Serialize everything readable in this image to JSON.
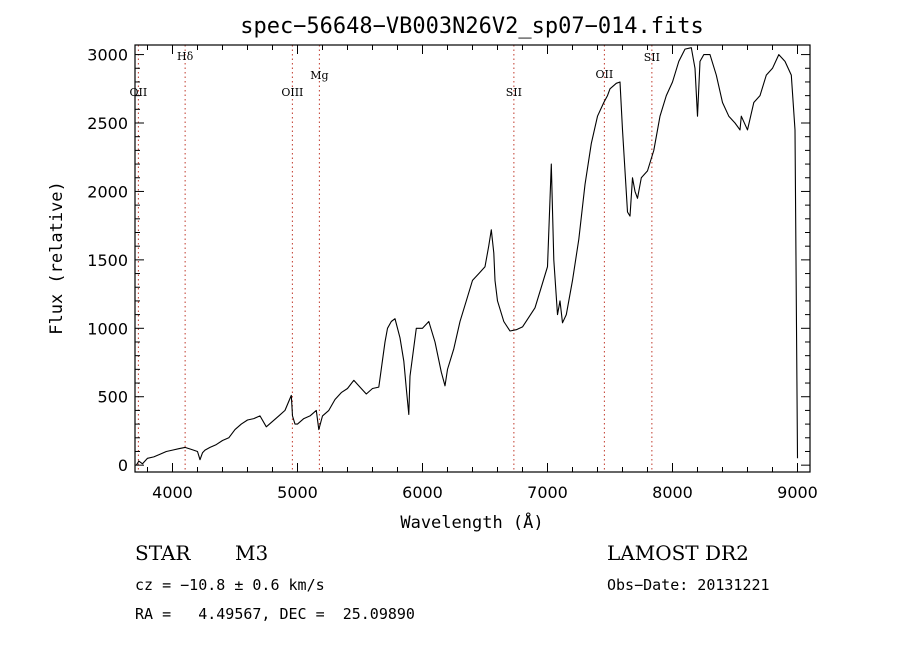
{
  "chart_data": {
    "type": "line",
    "title": "spec−56648−VB003N26V2_sp07−014.fits",
    "xlabel": "Wavelength (Å)",
    "ylabel": "Flux (relative)",
    "xlim": [
      3700,
      9100
    ],
    "ylim": [
      -50,
      3070
    ],
    "x_ticks": [
      4000,
      5000,
      6000,
      7000,
      8000,
      9000
    ],
    "y_ticks": [
      0,
      500,
      1000,
      1500,
      2000,
      2500,
      3000
    ],
    "grid": false,
    "line_markers": [
      {
        "label": "OII",
        "x": 3727
      },
      {
        "label": "Hδ",
        "x": 4101
      },
      {
        "label": "OIII",
        "x": 4959
      },
      {
        "label": "Mg",
        "x": 5175
      },
      {
        "label": "SII",
        "x": 6731
      },
      {
        "label": "OII",
        "x": 7455
      },
      {
        "label": "SII",
        "x": 7835
      }
    ],
    "series": [
      {
        "x": [
          3710,
          3730,
          3760,
          3800,
          3850,
          3900,
          3950,
          4000,
          4050,
          4100,
          4150,
          4200,
          4220,
          4240,
          4260,
          4300,
          4350,
          4400,
          4450,
          4500,
          4550,
          4600,
          4650,
          4700,
          4750,
          4800,
          4850,
          4900,
          4950,
          4960,
          4980,
          5000,
          5050,
          5100,
          5150,
          5170,
          5200,
          5250,
          5300,
          5350,
          5400,
          5450,
          5500,
          5550,
          5600,
          5650,
          5700,
          5720,
          5750,
          5780,
          5820,
          5850,
          5870,
          5890,
          5900,
          5950,
          6000,
          6050,
          6100,
          6150,
          6180,
          6200,
          6250,
          6300,
          6350,
          6400,
          6450,
          6500,
          6530,
          6550,
          6570,
          6580,
          6600,
          6650,
          6700,
          6750,
          6800,
          6850,
          6900,
          6950,
          7000,
          7030,
          7050,
          7080,
          7100,
          7120,
          7150,
          7200,
          7250,
          7300,
          7350,
          7400,
          7450,
          7480,
          7500,
          7550,
          7580,
          7600,
          7620,
          7640,
          7660,
          7680,
          7700,
          7720,
          7750,
          7800,
          7850,
          7900,
          7950,
          8000,
          8050,
          8100,
          8150,
          8180,
          8200,
          8220,
          8250,
          8300,
          8350,
          8400,
          8450,
          8500,
          8540,
          8550,
          8600,
          8650,
          8700,
          8750,
          8800,
          8850,
          8900,
          8950,
          8980,
          9000
        ],
        "values": [
          0,
          30,
          10,
          50,
          60,
          80,
          100,
          110,
          120,
          130,
          115,
          100,
          40,
          90,
          110,
          130,
          150,
          180,
          200,
          260,
          300,
          330,
          340,
          360,
          280,
          320,
          360,
          400,
          510,
          360,
          300,
          300,
          340,
          360,
          400,
          260,
          360,
          400,
          480,
          530,
          560,
          620,
          570,
          520,
          560,
          570,
          900,
          1000,
          1050,
          1070,
          930,
          760,
          560,
          370,
          650,
          1000,
          1000,
          1050,
          900,
          680,
          580,
          700,
          850,
          1050,
          1200,
          1350,
          1400,
          1450,
          1600,
          1720,
          1550,
          1350,
          1200,
          1050,
          980,
          990,
          1010,
          1080,
          1150,
          1300,
          1450,
          2200,
          1500,
          1100,
          1200,
          1040,
          1100,
          1350,
          1650,
          2050,
          2350,
          2550,
          2650,
          2700,
          2750,
          2790,
          2800,
          2450,
          2150,
          1850,
          1820,
          2100,
          2000,
          1950,
          2100,
          2150,
          2300,
          2550,
          2700,
          2800,
          2950,
          3040,
          3050,
          2900,
          2550,
          2950,
          3000,
          3000,
          2850,
          2650,
          2550,
          2500,
          2450,
          2550,
          2450,
          2650,
          2700,
          2850,
          2900,
          3000,
          2950,
          2850,
          2450,
          50
        ]
      }
    ]
  },
  "footer": {
    "object_class": "STAR",
    "subclass": "M3",
    "survey": "LAMOST DR2",
    "cz": "cz = −10.8 ± 0.6 km/s",
    "obs_date": "Obs−Date: 20131221",
    "coords": "RA =   4.49567, DEC =  25.09890"
  }
}
